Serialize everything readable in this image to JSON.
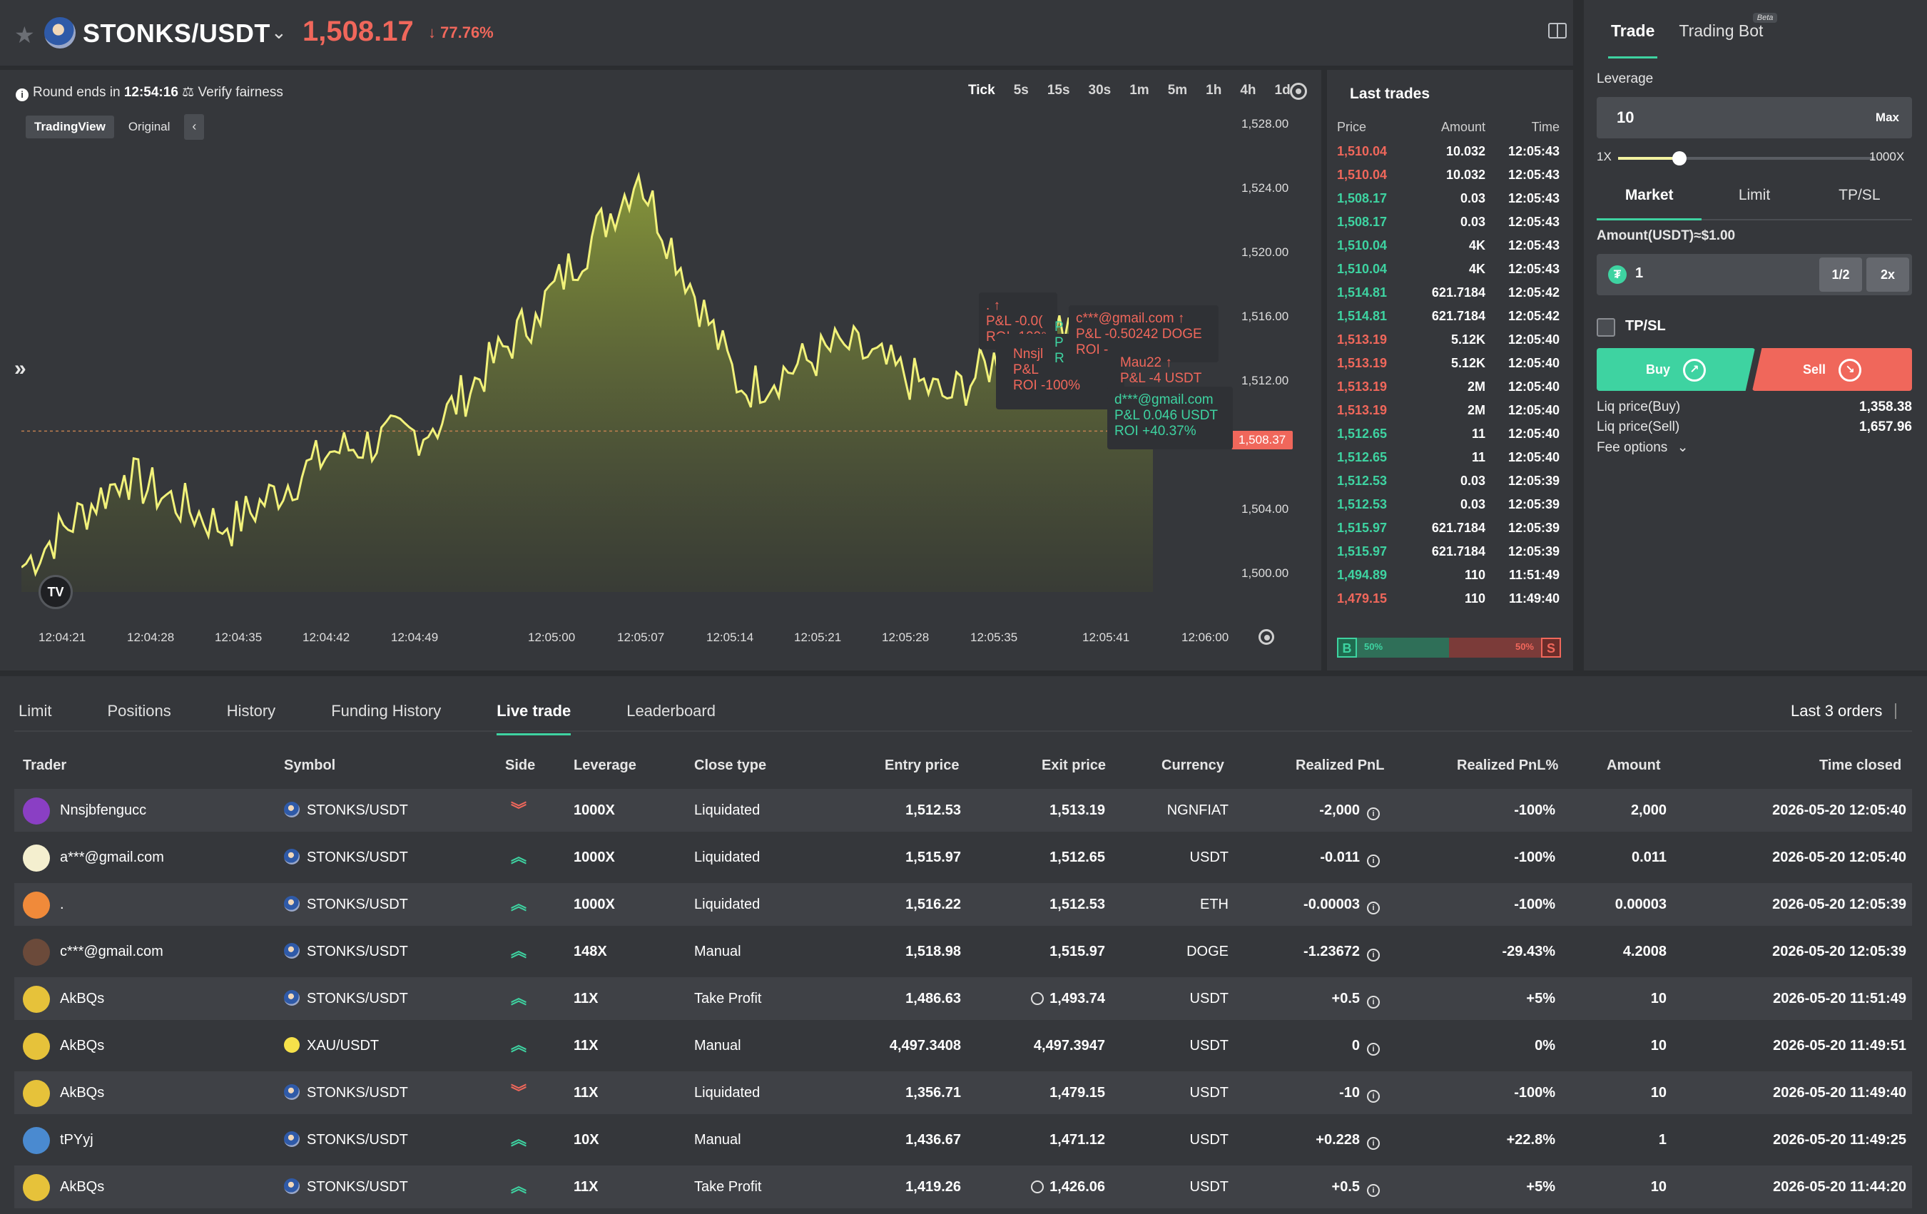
{
  "header": {
    "pair": "STONKS/USDT",
    "price": "1,508.17",
    "change": "77.76%"
  },
  "chart": {
    "round_text": "Round ends in",
    "round_time": "12:54:16",
    "verify": "Verify fairness",
    "timeframes": [
      "Tick",
      "5s",
      "15s",
      "30s",
      "1m",
      "5m",
      "1h",
      "4h",
      "1d"
    ],
    "view_tabs": [
      "TradingView",
      "Original"
    ],
    "y_labels": [
      "1,528.00",
      "1,524.00",
      "1,520.00",
      "1,516.00",
      "1,512.00",
      "1,508.37",
      "1,504.00",
      "1,500.00"
    ],
    "x_labels": [
      "12:04:21",
      "12:04:28",
      "12:04:35",
      "12:04:42",
      "12:04:49",
      "12:05:00",
      "12:05:07",
      "12:05:14",
      "12:05:21",
      "12:05:28",
      "12:05:35",
      "12:05:41",
      "12:06:00"
    ],
    "current_price": "1,508.37",
    "badge": "TV",
    "tooltips": {
      "t1_a": ". ↑",
      "t1_b": "P&L -0.0(",
      "t1_c": "ROI -100⁹",
      "t2_a": "c***@gmail.com ↑",
      "t2_b": "P&L -0.50242 DOGE",
      "t2_c": "ROI -",
      "t3_a": "Nnsjl",
      "t3_b": "P&L",
      "t3_c": "ROI -100%",
      "t3_p1": "P",
      "t3_p2": "P",
      "t3_p3": "R",
      "t4_a": "Mau22 ↑",
      "t4_b": "P&L -4 USDT",
      "t5_a": "d***@gmail.com",
      "t5_b": "P&L 0.046 USDT",
      "t5_c": "ROI +40.37%"
    }
  },
  "chart_data": {
    "type": "area",
    "title": "",
    "xlabel": "",
    "ylabel": "",
    "ylim": [
      1496.5,
      1529
    ],
    "x": [
      "12:04:21",
      "12:04:28",
      "12:04:35",
      "12:04:42",
      "12:04:49",
      "12:05:00",
      "12:05:07",
      "12:05:14",
      "12:05:21",
      "12:05:28",
      "12:05:35",
      "12:05:41"
    ],
    "series": [
      {
        "values": [
          1499.5,
          1505.5,
          1502.0,
          1507.0,
          1508.5,
          1516.0,
          1525.0,
          1511.0,
          1514.0,
          1510.5,
          1515.8,
          1508.37
        ]
      }
    ],
    "reference_line": 1508.37
  },
  "trades": {
    "title": "Last trades",
    "headers": [
      "Price",
      "Amount",
      "Time"
    ],
    "rows": [
      {
        "price": "1,510.04",
        "amount": "10.032",
        "time": "12:05:43",
        "side": "sell"
      },
      {
        "price": "1,510.04",
        "amount": "10.032",
        "time": "12:05:43",
        "side": "sell"
      },
      {
        "price": "1,508.17",
        "amount": "0.03",
        "time": "12:05:43",
        "side": "buy"
      },
      {
        "price": "1,508.17",
        "amount": "0.03",
        "time": "12:05:43",
        "side": "buy"
      },
      {
        "price": "1,510.04",
        "amount": "4K",
        "time": "12:05:43",
        "side": "buy"
      },
      {
        "price": "1,510.04",
        "amount": "4K",
        "time": "12:05:43",
        "side": "buy"
      },
      {
        "price": "1,514.81",
        "amount": "621.7184",
        "time": "12:05:42",
        "side": "buy"
      },
      {
        "price": "1,514.81",
        "amount": "621.7184",
        "time": "12:05:42",
        "side": "buy"
      },
      {
        "price": "1,513.19",
        "amount": "5.12K",
        "time": "12:05:40",
        "side": "sell"
      },
      {
        "price": "1,513.19",
        "amount": "5.12K",
        "time": "12:05:40",
        "side": "sell"
      },
      {
        "price": "1,513.19",
        "amount": "2M",
        "time": "12:05:40",
        "side": "sell"
      },
      {
        "price": "1,513.19",
        "amount": "2M",
        "time": "12:05:40",
        "side": "sell"
      },
      {
        "price": "1,512.65",
        "amount": "11",
        "time": "12:05:40",
        "side": "buy"
      },
      {
        "price": "1,512.65",
        "amount": "11",
        "time": "12:05:40",
        "side": "buy"
      },
      {
        "price": "1,512.53",
        "amount": "0.03",
        "time": "12:05:39",
        "side": "buy"
      },
      {
        "price": "1,512.53",
        "amount": "0.03",
        "time": "12:05:39",
        "side": "buy"
      },
      {
        "price": "1,515.97",
        "amount": "621.7184",
        "time": "12:05:39",
        "side": "buy"
      },
      {
        "price": "1,515.97",
        "amount": "621.7184",
        "time": "12:05:39",
        "side": "buy"
      },
      {
        "price": "1,494.89",
        "amount": "110",
        "time": "11:51:49",
        "side": "buy"
      },
      {
        "price": "1,479.15",
        "amount": "110",
        "time": "11:49:40",
        "side": "sell"
      }
    ],
    "buy_label": "B",
    "sell_label": "S",
    "buy_pct": "50%",
    "sell_pct": "50%",
    "buy_ratio": 0.5
  },
  "form": {
    "tabs": [
      "Trade",
      "Trading Bot"
    ],
    "beta": "Beta",
    "leverage_label": "Leverage",
    "leverage_value": "10",
    "max": "Max",
    "slider_min": "1X",
    "slider_max": "1000X",
    "slider_fraction": 0.24,
    "order_tabs": [
      "Market",
      "Limit",
      "TP/SL"
    ],
    "amount_label": "Amount(USDT)≈$1.00",
    "amount_value": "1",
    "usdt_glyph": "₮",
    "half": "1/2",
    "double": "2x",
    "tpsl": "TP/SL",
    "buy": "Buy",
    "sell": "Sell",
    "liq_buy_label": "Liq price(Buy)",
    "liq_buy": "1,358.38",
    "liq_sell_label": "Liq price(Sell)",
    "liq_sell": "1,657.96",
    "fee_options": "Fee options"
  },
  "bottom": {
    "tabs": [
      "Limit",
      "Positions",
      "History",
      "Funding History",
      "Live trade",
      "Leaderboard"
    ],
    "last_orders": "Last 3 orders",
    "columns": [
      "Trader",
      "Symbol",
      "Side",
      "Leverage",
      "Close type",
      "Entry price",
      "Exit price",
      "Currency",
      "Realized PnL",
      "Realized PnL%",
      "Amount",
      "Time closed"
    ],
    "rows": [
      {
        "trader": "Nnsjbfengucc",
        "avatar": "#8a3fc4",
        "symbol": "STONKS/USDT",
        "side": "down",
        "leverage": "1000X",
        "close_type": "Liquidated",
        "entry": "1,512.53",
        "exit": "1,513.19",
        "exit_clock": false,
        "currency": "NGNFIAT",
        "pnl": "-2,000",
        "pnl_pos": false,
        "pnl_pct": "-100%",
        "amount": "2,000",
        "time": "2026-05-20 12:05:40"
      },
      {
        "trader": "a***@gmail.com",
        "avatar": "#f4efcf",
        "symbol": "STONKS/USDT",
        "side": "up",
        "leverage": "1000X",
        "close_type": "Liquidated",
        "entry": "1,515.97",
        "exit": "1,512.65",
        "exit_clock": false,
        "currency": "USDT",
        "pnl": "-0.011",
        "pnl_pos": false,
        "pnl_pct": "-100%",
        "amount": "0.011",
        "time": "2026-05-20 12:05:40"
      },
      {
        "trader": ".",
        "avatar": "#f08a3a",
        "symbol": "STONKS/USDT",
        "side": "up",
        "leverage": "1000X",
        "close_type": "Liquidated",
        "entry": "1,516.22",
        "exit": "1,512.53",
        "exit_clock": false,
        "currency": "ETH",
        "pnl": "-0.00003",
        "pnl_pos": false,
        "pnl_pct": "-100%",
        "amount": "0.00003",
        "time": "2026-05-20 12:05:39"
      },
      {
        "trader": "c***@gmail.com",
        "avatar": "#6b4a3a",
        "symbol": "STONKS/USDT",
        "side": "up",
        "leverage": "148X",
        "close_type": "Manual",
        "entry": "1,518.98",
        "exit": "1,515.97",
        "exit_clock": false,
        "currency": "DOGE",
        "pnl": "-1.23672",
        "pnl_pos": false,
        "pnl_pct": "-29.43%",
        "amount": "4.2008",
        "time": "2026-05-20 12:05:39"
      },
      {
        "trader": "AkBQs",
        "avatar": "#e6c23a",
        "symbol": "STONKS/USDT",
        "side": "up",
        "leverage": "11X",
        "close_type": "Take Profit",
        "entry": "1,486.63",
        "exit": "1,493.74",
        "exit_clock": true,
        "currency": "USDT",
        "pnl": "+0.5",
        "pnl_pos": true,
        "pnl_pct": "+5%",
        "amount": "10",
        "time": "2026-05-20 11:51:49"
      },
      {
        "trader": "AkBQs",
        "avatar": "#e6c23a",
        "symbol": "XAU/USDT",
        "side": "up",
        "leverage": "11X",
        "close_type": "Manual",
        "entry": "4,497.3408",
        "exit": "4,497.3947",
        "exit_clock": false,
        "currency": "USDT",
        "pnl": "0",
        "pnl_pos": true,
        "pnl_pct": "0%",
        "amount": "10",
        "time": "2026-05-20 11:49:51"
      },
      {
        "trader": "AkBQs",
        "avatar": "#e6c23a",
        "symbol": "STONKS/USDT",
        "side": "down",
        "leverage": "11X",
        "close_type": "Liquidated",
        "entry": "1,356.71",
        "exit": "1,479.15",
        "exit_clock": false,
        "currency": "USDT",
        "pnl": "-10",
        "pnl_pos": false,
        "pnl_pct": "-100%",
        "amount": "10",
        "time": "2026-05-20 11:49:40"
      },
      {
        "trader": "tPYyj",
        "avatar": "#4a8ad0",
        "symbol": "STONKS/USDT",
        "side": "up",
        "leverage": "10X",
        "close_type": "Manual",
        "entry": "1,436.67",
        "exit": "1,471.12",
        "exit_clock": false,
        "currency": "USDT",
        "pnl": "+0.228",
        "pnl_pos": true,
        "pnl_pct": "+22.8%",
        "amount": "1",
        "time": "2026-05-20 11:49:25"
      },
      {
        "trader": "AkBQs",
        "avatar": "#e6c23a",
        "symbol": "STONKS/USDT",
        "side": "up",
        "leverage": "11X",
        "close_type": "Take Profit",
        "entry": "1,419.26",
        "exit": "1,426.06",
        "exit_clock": true,
        "currency": "USDT",
        "pnl": "+0.5",
        "pnl_pos": true,
        "pnl_pct": "+5%",
        "amount": "10",
        "time": "2026-05-20 11:44:20"
      }
    ]
  },
  "colors": {
    "up": "#3ed3a1",
    "down": "#f0675b",
    "line": "#f2f27a"
  }
}
